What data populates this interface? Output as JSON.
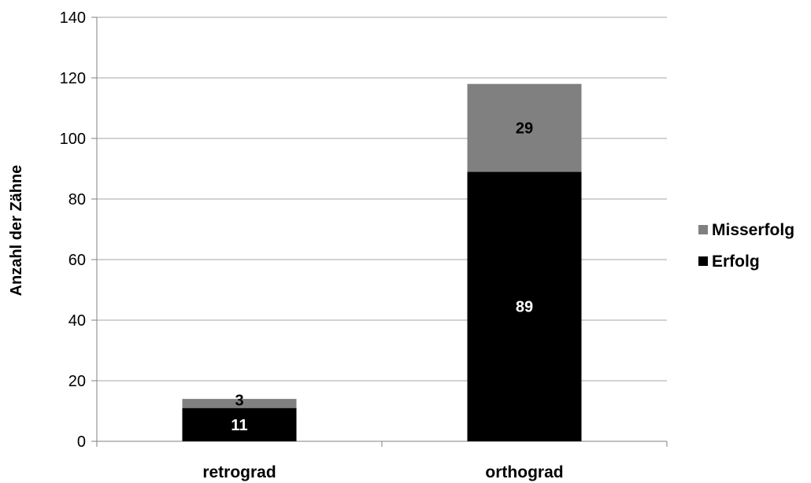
{
  "chart_data": {
    "type": "bar",
    "stacked": true,
    "categories": [
      "retrograd",
      "orthograd"
    ],
    "series": [
      {
        "name": "Erfolg",
        "values": [
          11,
          89
        ],
        "color": "#000000",
        "label_color": "#ffffff"
      },
      {
        "name": "Misserfolg",
        "values": [
          3,
          29
        ],
        "color": "#808080",
        "label_color": "#000000"
      }
    ],
    "title": "",
    "xlabel": "",
    "ylabel": "Anzahl der Zähne",
    "ylim": [
      0,
      140
    ],
    "yticks": [
      0,
      20,
      40,
      60,
      80,
      100,
      120,
      140
    ],
    "grid": true,
    "legend_position": "right",
    "legend_order": [
      "Misserfolg",
      "Erfolg"
    ],
    "gridline_color": "#a6a6a6"
  }
}
